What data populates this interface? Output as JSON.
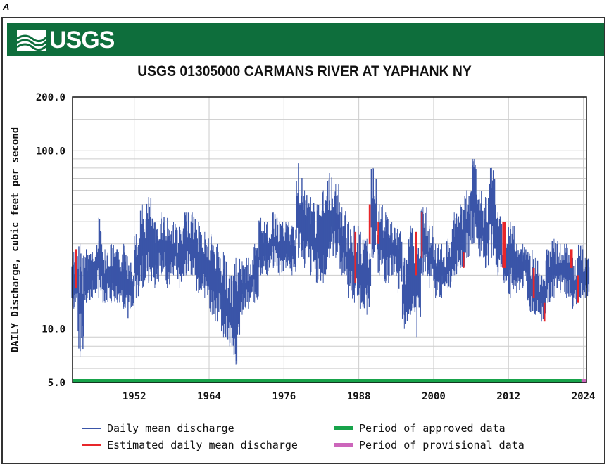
{
  "figure_label": "A",
  "logo_text": "USGS",
  "chart_data": {
    "type": "line",
    "title": "USGS 01305000 CARMANS RIVER AT YAPHANK NY",
    "ylabel": "DAILY Discharge, cubic feet per second",
    "xlabel": "",
    "yscale": "log",
    "ylim": [
      5,
      200
    ],
    "xlim": [
      1942.1,
      2024.5
    ],
    "yticks": [
      {
        "v": 5,
        "label": "5.0"
      },
      {
        "v": 10,
        "label": "10.0"
      },
      {
        "v": 100,
        "label": "100.0"
      },
      {
        "v": 200,
        "label": "200.0"
      }
    ],
    "xticks": [
      1952,
      1964,
      1976,
      1988,
      2000,
      2012,
      2024
    ],
    "grid": true,
    "colors": {
      "daily": "#3a55a8",
      "estimated": "#e8262a",
      "approved": "#17a34a",
      "provisional": "#cc66bb"
    },
    "daily_mean_yearly_range": [
      [
        1942,
        13,
        27
      ],
      [
        1943,
        7,
        30
      ],
      [
        1944,
        14,
        28
      ],
      [
        1945,
        15,
        27
      ],
      [
        1946,
        15,
        42
      ],
      [
        1947,
        14,
        28
      ],
      [
        1948,
        14,
        30
      ],
      [
        1949,
        14,
        28
      ],
      [
        1950,
        13,
        30
      ],
      [
        1951,
        11,
        28
      ],
      [
        1952,
        15,
        34
      ],
      [
        1953,
        17,
        50
      ],
      [
        1954,
        18,
        55
      ],
      [
        1955,
        17,
        40
      ],
      [
        1956,
        20,
        45
      ],
      [
        1957,
        17,
        42
      ],
      [
        1958,
        20,
        40
      ],
      [
        1959,
        17,
        38
      ],
      [
        1960,
        20,
        45
      ],
      [
        1961,
        20,
        45
      ],
      [
        1962,
        16,
        40
      ],
      [
        1963,
        15,
        35
      ],
      [
        1964,
        12,
        34
      ],
      [
        1965,
        11,
        30
      ],
      [
        1966,
        9,
        27
      ],
      [
        1967,
        8,
        20
      ],
      [
        1968,
        6.3,
        25
      ],
      [
        1969,
        12,
        24
      ],
      [
        1970,
        13,
        25
      ],
      [
        1971,
        14,
        30
      ],
      [
        1972,
        20,
        42
      ],
      [
        1973,
        20,
        40
      ],
      [
        1974,
        22,
        45
      ],
      [
        1975,
        20,
        40
      ],
      [
        1976,
        22,
        40
      ],
      [
        1977,
        20,
        38
      ],
      [
        1978,
        25,
        85
      ],
      [
        1979,
        22,
        60
      ],
      [
        1980,
        20,
        55
      ],
      [
        1981,
        18,
        50
      ],
      [
        1982,
        18,
        60
      ],
      [
        1983,
        25,
        75
      ],
      [
        1984,
        25,
        65
      ],
      [
        1985,
        20,
        48
      ],
      [
        1986,
        15,
        40
      ],
      [
        1987,
        14,
        38
      ],
      [
        1988,
        13,
        35
      ],
      [
        1989,
        12,
        32
      ],
      [
        1990,
        25,
        80
      ],
      [
        1991,
        20,
        50
      ],
      [
        1992,
        18,
        45
      ],
      [
        1993,
        20,
        40
      ],
      [
        1994,
        16,
        38
      ],
      [
        1995,
        10,
        25
      ],
      [
        1996,
        12,
        38
      ],
      [
        1997,
        9,
        35
      ],
      [
        1998,
        20,
        48
      ],
      [
        1999,
        17,
        38
      ],
      [
        2000,
        15,
        30
      ],
      [
        2001,
        15,
        30
      ],
      [
        2002,
        17,
        32
      ],
      [
        2003,
        20,
        45
      ],
      [
        2004,
        22,
        50
      ],
      [
        2005,
        25,
        60
      ],
      [
        2006,
        30,
        90
      ],
      [
        2007,
        25,
        60
      ],
      [
        2008,
        22,
        55
      ],
      [
        2009,
        25,
        80
      ],
      [
        2010,
        20,
        45
      ],
      [
        2011,
        18,
        35
      ],
      [
        2012,
        15,
        40
      ],
      [
        2013,
        16,
        30
      ],
      [
        2014,
        17,
        30
      ],
      [
        2015,
        12,
        28
      ],
      [
        2016,
        12,
        25
      ],
      [
        2017,
        11,
        20
      ],
      [
        2018,
        14,
        28
      ],
      [
        2019,
        15,
        32
      ],
      [
        2020,
        16,
        30
      ],
      [
        2021,
        15,
        30
      ],
      [
        2022,
        13,
        25
      ],
      [
        2023,
        14,
        30
      ],
      [
        2024,
        15,
        25
      ]
    ],
    "estimated_periods": [
      [
        1942.5,
        1942.8,
        17,
        28
      ],
      [
        1987.3,
        1987.6,
        18,
        35
      ],
      [
        1989.6,
        1989.9,
        30,
        50
      ],
      [
        1991.0,
        1991.3,
        30,
        40
      ],
      [
        1997.0,
        1997.4,
        20,
        35
      ],
      [
        1998.0,
        1998.2,
        25,
        45
      ],
      [
        2004.7,
        2004.9,
        22,
        27
      ],
      [
        2011.0,
        2011.6,
        22,
        40
      ],
      [
        2015.9,
        2016.2,
        15,
        22
      ],
      [
        2017.6,
        2017.9,
        11,
        14
      ],
      [
        2021.9,
        2022.3,
        22,
        28
      ],
      [
        2023.0,
        2023.3,
        14,
        20
      ]
    ],
    "approved_period": [
      1942.1,
      2023.7
    ],
    "provisional_period": [
      2023.7,
      2024.5
    ],
    "legend": {
      "placement": "bottom",
      "entries": [
        "Daily mean discharge",
        "Estimated daily mean discharge",
        "Period of approved data",
        "Period of provisional data"
      ]
    }
  }
}
